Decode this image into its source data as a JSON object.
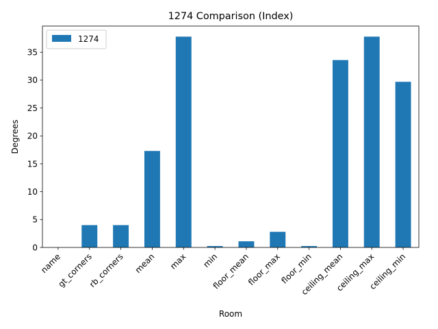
{
  "chart_data": {
    "type": "bar",
    "title": "1274 Comparison (Index)",
    "xlabel": "Room",
    "ylabel": "Degrees",
    "categories": [
      "name",
      "gt_corners",
      "rb_corners",
      "mean",
      "max",
      "min",
      "floor_mean",
      "floor_max",
      "floor_min",
      "ceiling_mean",
      "ceiling_max",
      "ceiling_min"
    ],
    "series": [
      {
        "name": "1274",
        "color": "#1f77b4",
        "values": [
          0,
          4,
          4,
          17.3,
          37.8,
          0.25,
          1.1,
          2.8,
          0.25,
          33.6,
          37.8,
          29.7
        ]
      }
    ],
    "ylim": [
      0,
      39.7
    ],
    "yticks": [
      0,
      5,
      10,
      15,
      20,
      25,
      30,
      35
    ],
    "grid": false,
    "legend_position": "upper-left"
  }
}
